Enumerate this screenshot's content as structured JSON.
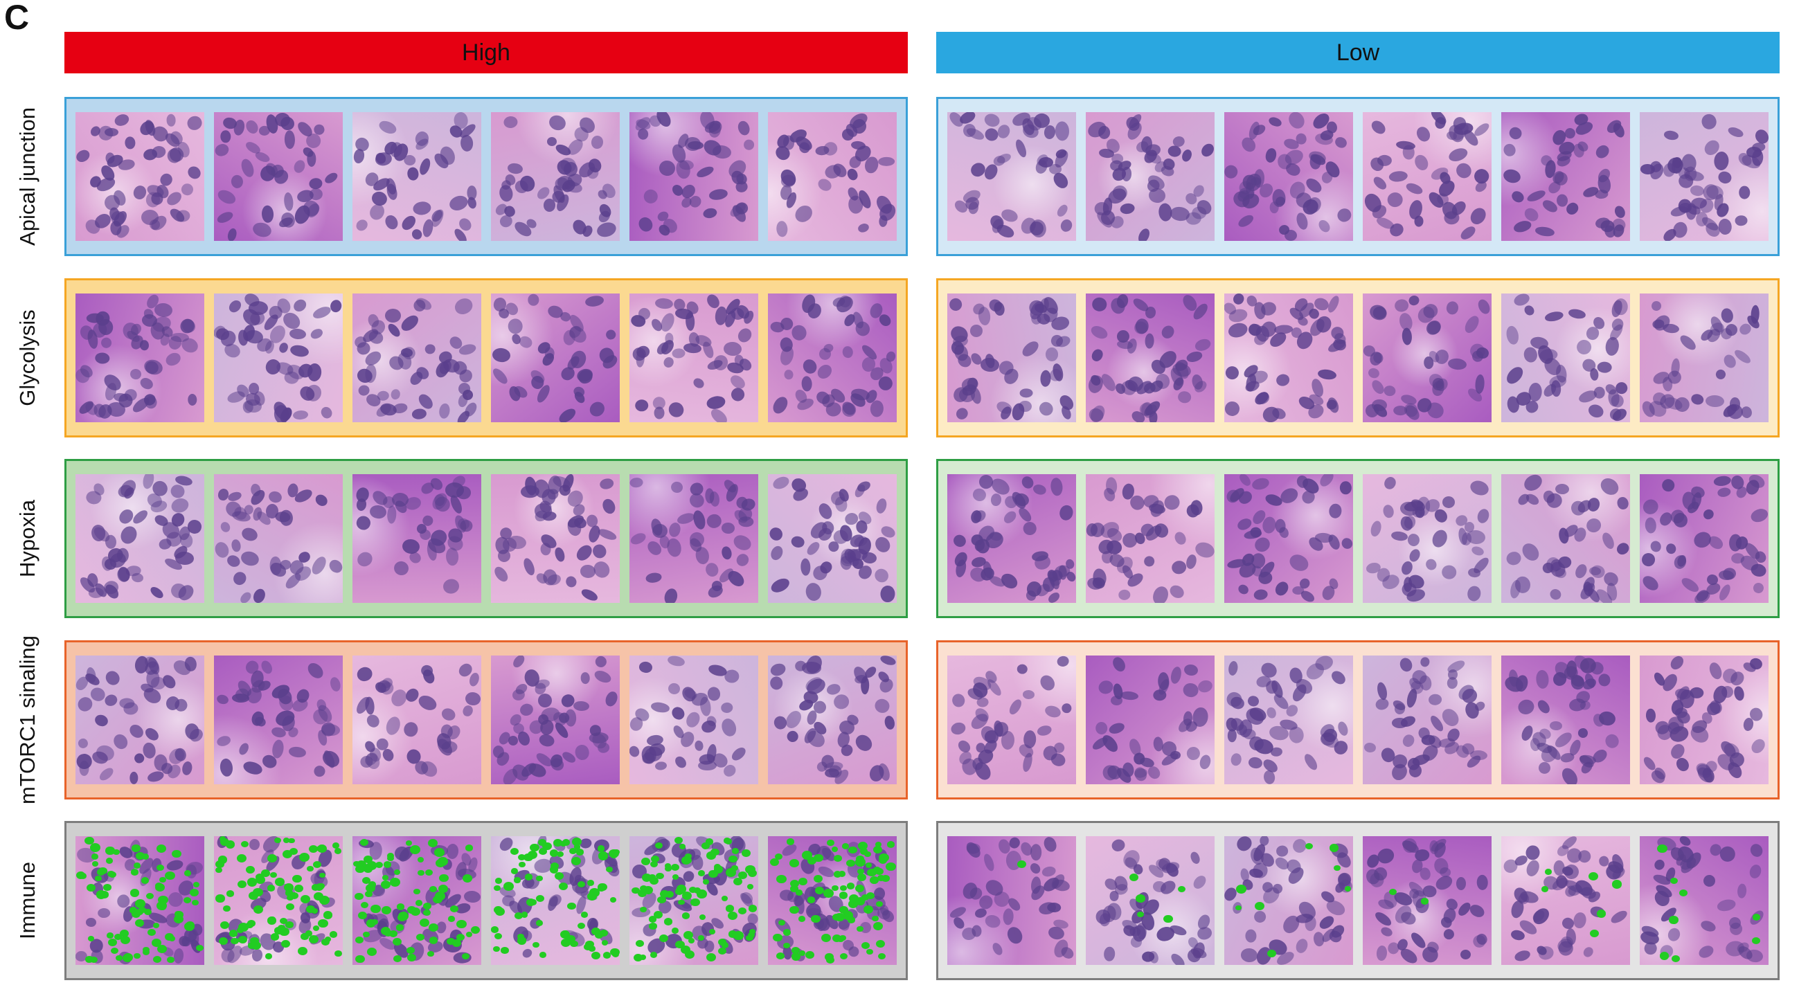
{
  "panel_letter": "C",
  "groups": {
    "high": {
      "label": "High",
      "color": "#e60012"
    },
    "low": {
      "label": "Low",
      "color": "#2aa7e0"
    }
  },
  "rows": [
    {
      "key": "apical",
      "label": "Apical junction",
      "border_color": "#3aa0d8",
      "fill_high": "#b9d7ee",
      "fill_low": "#d4e8f6"
    },
    {
      "key": "glyco",
      "label": "Glycolysis",
      "border_color": "#f5a623",
      "fill_high": "#fbd991",
      "fill_low": "#fdebc4"
    },
    {
      "key": "hypoxia",
      "label": "Hypoxia",
      "border_color": "#2e9e44",
      "fill_high": "#b8dcb0",
      "fill_low": "#d6ebd1"
    },
    {
      "key": "mtorc1",
      "label": "mTORC1 sinaling",
      "border_color": "#e8632a",
      "fill_high": "#f6c3a8",
      "fill_low": "#fbe0d1"
    },
    {
      "key": "immune",
      "label": "Immune",
      "border_color": "#7d7d7d",
      "fill_high": "#cfcfcf",
      "fill_low": "#e4e4e4"
    }
  ],
  "tile_tones": {
    "pink_light": "#e6b8de",
    "pink_mid": "#d89ad0",
    "purple_dark": "#a95cc0",
    "lavender": "#cdb5dc",
    "nucleus": "#5a3f8c",
    "overlay_dot": "#22cc22"
  }
}
